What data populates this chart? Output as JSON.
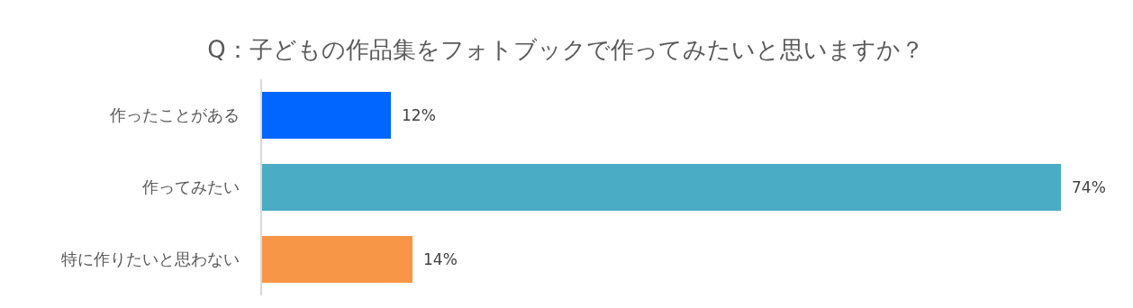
{
  "chart_data": {
    "type": "bar",
    "orientation": "horizontal",
    "title": "Q：子どもの作品集をフォトブックで作ってみたいと思いますか？",
    "categories": [
      "作ったことがある",
      "作ってみたい",
      "特に作りたいと思わない"
    ],
    "values": [
      12,
      74,
      14
    ],
    "colors": [
      "#0066ff",
      "#4bacc6",
      "#f79646"
    ],
    "value_labels": [
      "12%",
      "74%",
      "14%"
    ]
  }
}
